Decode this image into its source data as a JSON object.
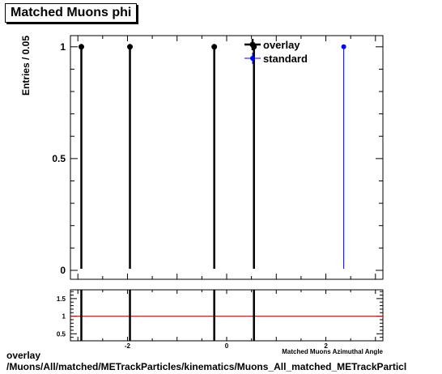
{
  "title": "Matched Muons phi",
  "footer": {
    "line1": "overlay",
    "line2": "/Muons/All/matched/METrackParticles/kinematics/Muons_All_matched_METrackParticl"
  },
  "chart_data": [
    {
      "type": "scatter",
      "panel": "main",
      "ylabel": "Entries / 0.05",
      "xlim": [
        -3.15,
        3.15
      ],
      "ylim": [
        -0.04,
        1.05
      ],
      "yticks": [
        0,
        0.5,
        1
      ],
      "ytick_labels": [
        "0",
        "0.5",
        "1"
      ],
      "legend": {
        "position": "top-right",
        "entries": [
          "overlay",
          "standard"
        ]
      },
      "colors": {
        "overlay": "#000000",
        "standard": "#0000ff"
      },
      "series": [
        {
          "name": "overlay",
          "x": [
            -2.93,
            -1.95,
            -0.25,
            0.55
          ],
          "y": [
            1,
            1,
            1,
            1
          ]
        },
        {
          "name": "standard",
          "x": [
            2.36
          ],
          "y": [
            1
          ]
        }
      ]
    },
    {
      "type": "scatter",
      "panel": "ratio",
      "xlabel": "Matched Muons Azimuthal Angle",
      "xlim": [
        -3.15,
        3.15
      ],
      "ylim": [
        0.3,
        1.75
      ],
      "xticks": [
        -2,
        0,
        2
      ],
      "xtick_labels": [
        "-2",
        "0",
        "2"
      ],
      "yticks": [
        0.5,
        1,
        1.5
      ],
      "ytick_labels": [
        "0.5",
        "1",
        "1.5"
      ],
      "reference_line": {
        "y": 1,
        "color": "#cc0000"
      },
      "series": [
        {
          "name": "ratio",
          "x": [
            -2.93,
            -1.95,
            -0.25,
            0.55
          ],
          "y": [
            1,
            1,
            1,
            1
          ]
        }
      ]
    }
  ]
}
